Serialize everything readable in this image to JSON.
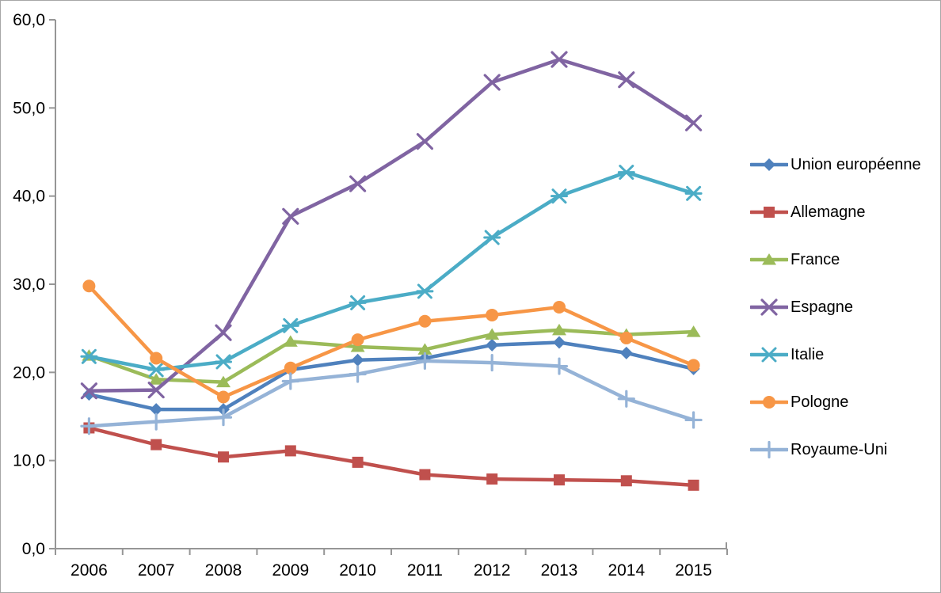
{
  "chart_data": {
    "type": "line",
    "title": "",
    "categories": [
      "2006",
      "2007",
      "2008",
      "2009",
      "2010",
      "2011",
      "2012",
      "2013",
      "2014",
      "2015"
    ],
    "series": [
      {
        "name": "Union européenne",
        "color": "#4F81BD",
        "marker": "diamond",
        "values": [
          17.5,
          15.8,
          15.8,
          20.3,
          21.4,
          21.6,
          23.1,
          23.4,
          22.2,
          20.4
        ]
      },
      {
        "name": "Allemagne",
        "color": "#C0504D",
        "marker": "square",
        "values": [
          13.7,
          11.8,
          10.4,
          11.1,
          9.8,
          8.4,
          7.9,
          7.8,
          7.7,
          7.2
        ]
      },
      {
        "name": "France",
        "color": "#9BBB59",
        "marker": "triangle",
        "values": [
          21.9,
          19.2,
          18.9,
          23.5,
          22.9,
          22.6,
          24.3,
          24.8,
          24.3,
          24.6
        ]
      },
      {
        "name": "Espagne",
        "color": "#8064A2",
        "marker": "x",
        "values": [
          17.9,
          18.0,
          24.5,
          37.7,
          41.4,
          46.2,
          52.9,
          55.5,
          53.2,
          48.3
        ]
      },
      {
        "name": "Italie",
        "color": "#4BACC6",
        "marker": "star",
        "values": [
          21.8,
          20.3,
          21.2,
          25.3,
          27.9,
          29.2,
          35.3,
          40.0,
          42.7,
          40.3
        ]
      },
      {
        "name": "Pologne",
        "color": "#F79646",
        "marker": "circle",
        "values": [
          29.8,
          21.6,
          17.2,
          20.5,
          23.7,
          25.8,
          26.5,
          27.4,
          23.9,
          20.8
        ]
      },
      {
        "name": "Royaume-Uni",
        "color": "#95B3D7",
        "marker": "plus",
        "values": [
          13.9,
          14.4,
          14.9,
          19.0,
          19.8,
          21.3,
          21.1,
          20.7,
          17.0,
          14.6
        ]
      }
    ],
    "y_axis": {
      "min": 0,
      "max": 60,
      "step": 10,
      "tick_labels": [
        "0,0",
        "10,0",
        "20,0",
        "30,0",
        "40,0",
        "50,0",
        "60,0"
      ]
    },
    "x_axis": {
      "tick_labels": [
        "2006",
        "2007",
        "2008",
        "2009",
        "2010",
        "2011",
        "2012",
        "2013",
        "2014",
        "2015"
      ]
    },
    "legend_position": "right",
    "grid": false,
    "axis_color": "#969696",
    "text_color": "#000000",
    "background_color": "#FFFFFF"
  }
}
